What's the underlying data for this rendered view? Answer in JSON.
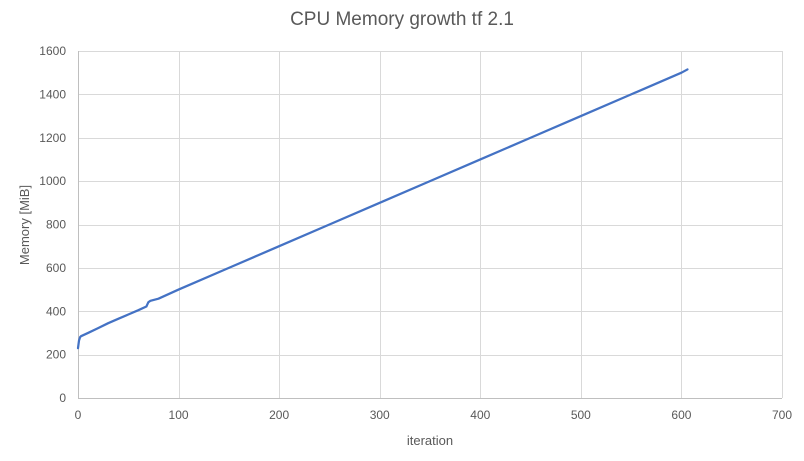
{
  "chart_data": {
    "type": "line",
    "title": "CPU Memory growth tf 2.1",
    "xlabel": "iteration",
    "ylabel": "Memory [MiB]",
    "xlim": [
      0,
      700
    ],
    "ylim": [
      0,
      1600
    ],
    "x_ticks": [
      0,
      100,
      200,
      300,
      400,
      500,
      600,
      700
    ],
    "y_ticks": [
      0,
      200,
      400,
      600,
      800,
      1000,
      1200,
      1400,
      1600
    ],
    "x_tick_labels": [
      "0",
      "100",
      "200",
      "300",
      "400",
      "500",
      "600",
      "700"
    ],
    "y_tick_labels": [
      "0",
      "200",
      "400",
      "600",
      "800",
      "1000",
      "1200",
      "1400",
      "1600"
    ],
    "grid": "major, both axes",
    "legend": "none",
    "series": [
      {
        "color": "#4472c4",
        "x": [
          0,
          1,
          2,
          3,
          10,
          20,
          30,
          40,
          50,
          60,
          68,
          69,
          70,
          72,
          80,
          100,
          150,
          200,
          250,
          300,
          350,
          400,
          450,
          500,
          550,
          600,
          606
        ],
        "y": [
          230,
          265,
          280,
          285,
          300,
          322,
          345,
          365,
          385,
          405,
          422,
          432,
          442,
          448,
          458,
          500,
          600,
          700,
          800,
          900,
          1000,
          1100,
          1200,
          1300,
          1400,
          1500,
          1515
        ]
      }
    ]
  }
}
